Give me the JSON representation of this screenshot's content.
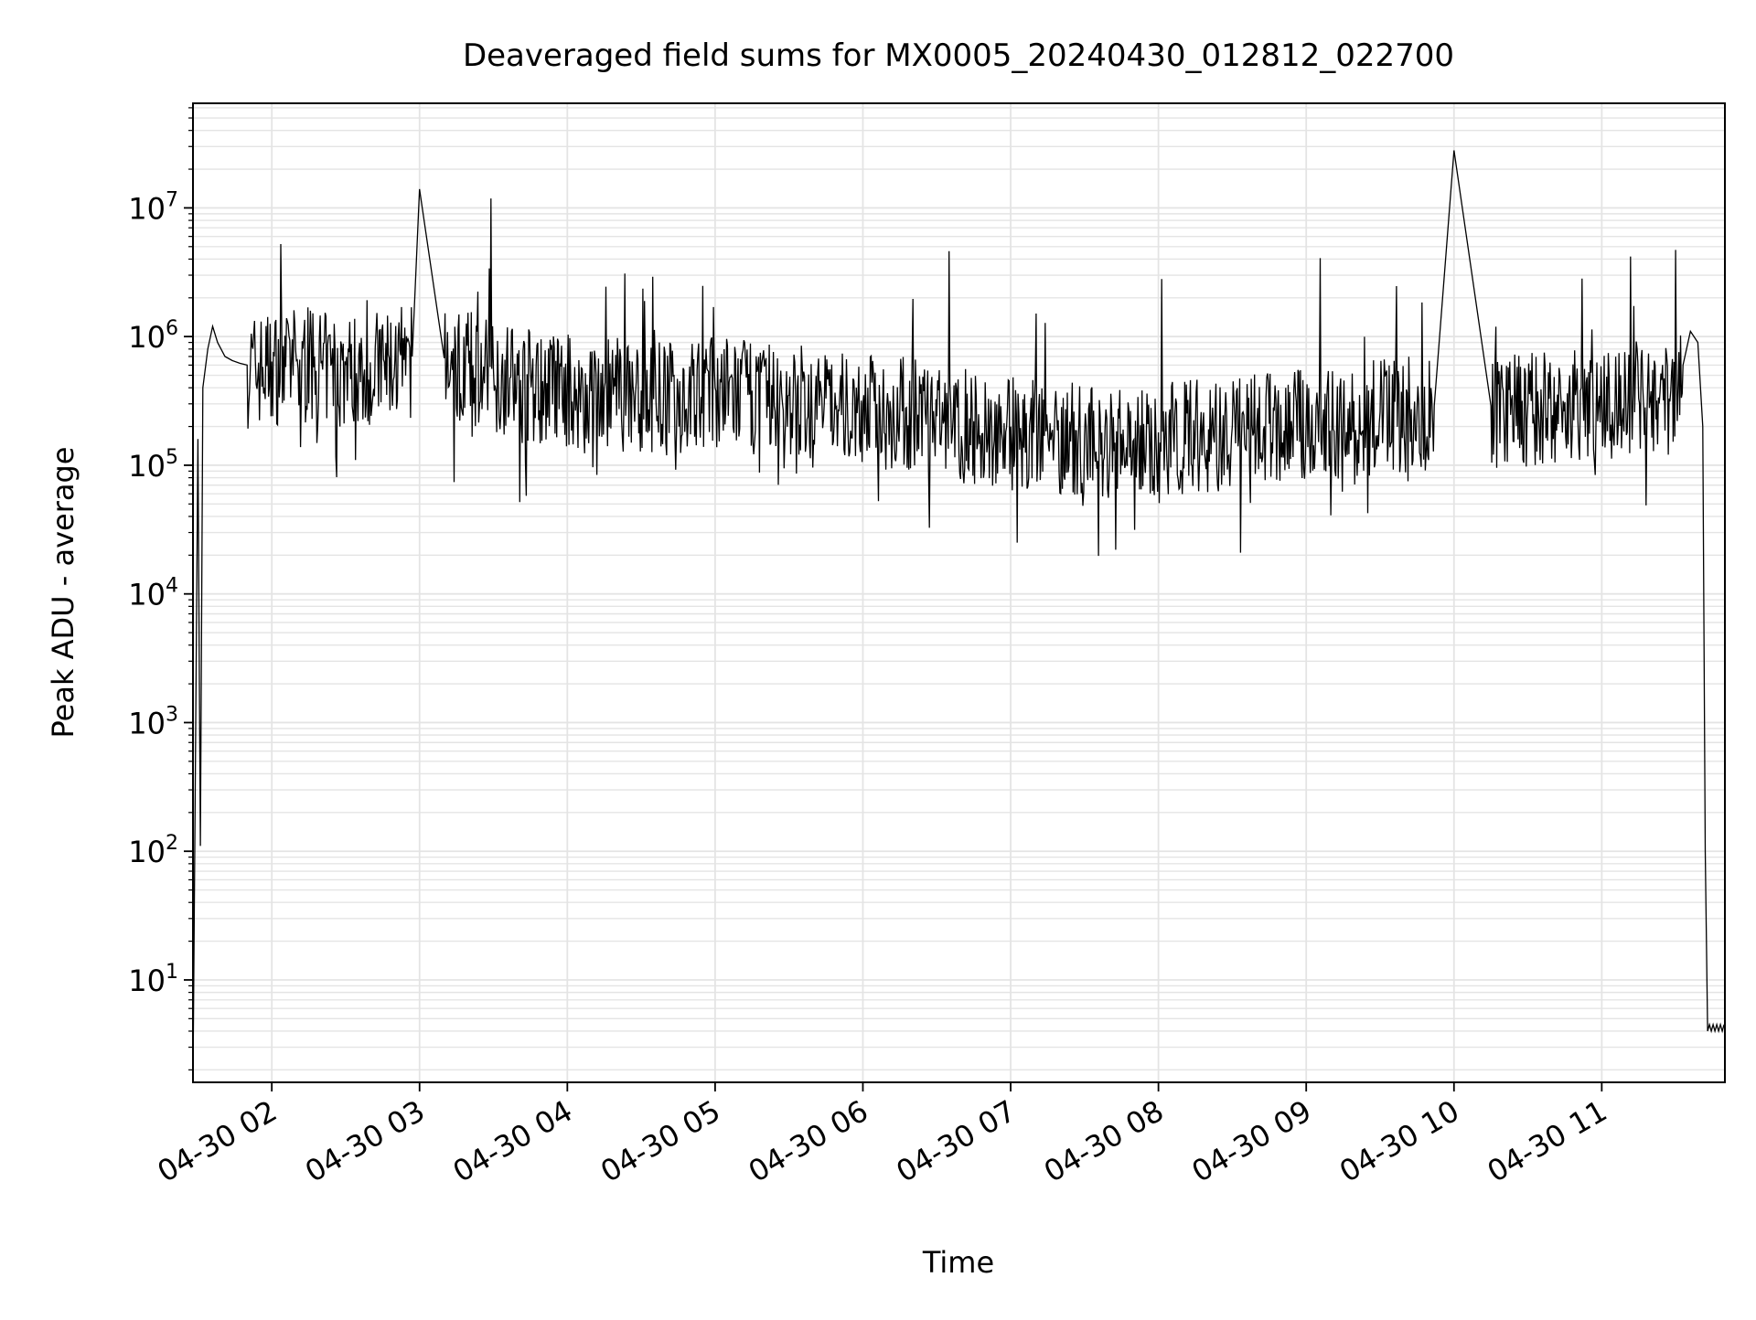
{
  "chart_data": {
    "type": "line",
    "title": "Deaveraged field sums for MX0005_20240430_012812_022700",
    "xlabel": "Time",
    "ylabel": "Peak ADU - average",
    "yscale": "log",
    "ylim": [
      1.6,
      65000000
    ],
    "xlim": [
      "2024-04-30 01:28",
      "2024-04-30 11:50"
    ],
    "grid": true,
    "line_color": "#000000",
    "x_ticks": [
      "04-30 02",
      "04-30 03",
      "04-30 04",
      "04-30 05",
      "04-30 06",
      "04-30 07",
      "04-30 08",
      "04-30 09",
      "04-30 10",
      "04-30 11"
    ],
    "y_ticks": [
      {
        "base": "10",
        "exp": "1"
      },
      {
        "base": "10",
        "exp": "2"
      },
      {
        "base": "10",
        "exp": "3"
      },
      {
        "base": "10",
        "exp": "4"
      },
      {
        "base": "10",
        "exp": "5"
      },
      {
        "base": "10",
        "exp": "6"
      },
      {
        "base": "10",
        "exp": "7"
      }
    ],
    "series": [
      {
        "x": [
          "2024-04-30 01:28",
          "2024-04-30 01:30",
          "2024-04-30 01:31",
          "2024-04-30 01:32",
          "2024-04-30 01:34",
          "2024-04-30 01:36",
          "2024-04-30 01:38",
          "2024-04-30 01:41",
          "2024-04-30 01:44",
          "2024-04-30 01:47",
          "2024-04-30 01:50",
          "2024-04-30 02:00",
          "2024-04-30 02:10",
          "2024-04-30 02:20",
          "2024-04-30 02:30",
          "2024-04-30 02:40",
          "2024-04-30 02:50",
          "2024-04-30 02:57",
          "2024-04-30 03:00",
          "2024-04-30 03:10",
          "2024-04-30 03:20",
          "2024-04-30 03:30",
          "2024-04-30 03:40",
          "2024-04-30 03:50",
          "2024-04-30 04:00",
          "2024-04-30 04:15",
          "2024-04-30 04:30",
          "2024-04-30 04:45",
          "2024-04-30 05:00",
          "2024-04-30 05:15",
          "2024-04-30 05:30",
          "2024-04-30 05:45",
          "2024-04-30 06:00",
          "2024-04-30 06:15",
          "2024-04-30 06:30",
          "2024-04-30 06:45",
          "2024-04-30 07:00",
          "2024-04-30 07:15",
          "2024-04-30 07:30",
          "2024-04-30 07:45",
          "2024-04-30 08:00",
          "2024-04-30 08:15",
          "2024-04-30 08:30",
          "2024-04-30 08:45",
          "2024-04-30 09:00",
          "2024-04-30 09:15",
          "2024-04-30 09:30",
          "2024-04-30 09:45",
          "2024-04-30 09:52",
          "2024-04-30 10:00",
          "2024-04-30 10:15",
          "2024-04-30 10:30",
          "2024-04-30 10:45",
          "2024-04-30 11:00",
          "2024-04-30 11:15",
          "2024-04-30 11:28",
          "2024-04-30 11:33",
          "2024-04-30 11:36",
          "2024-04-30 11:39",
          "2024-04-30 11:41",
          "2024-04-30 11:42",
          "2024-04-30 11:43",
          "2024-04-30 11:45",
          "2024-04-30 11:50"
        ],
        "y": [
          1.6,
          160000,
          110,
          400000,
          800000,
          1200000,
          900000,
          700000,
          650000,
          620000,
          600000,
          640000,
          650000,
          620000,
          600000,
          630000,
          660000,
          700000,
          14000000,
          680000,
          620000,
          560000,
          500000,
          450000,
          420000,
          400000,
          380000,
          360000,
          400000,
          380000,
          350000,
          330000,
          300000,
          280000,
          240000,
          220000,
          200000,
          190000,
          170000,
          175000,
          180000,
          190000,
          200000,
          210000,
          230000,
          250000,
          260000,
          280000,
          290000,
          28000000,
          290000,
          300000,
          310000,
          320000,
          330000,
          380000,
          600000,
          1100000,
          900000,
          200000,
          100,
          4,
          4,
          4
        ]
      }
    ]
  }
}
